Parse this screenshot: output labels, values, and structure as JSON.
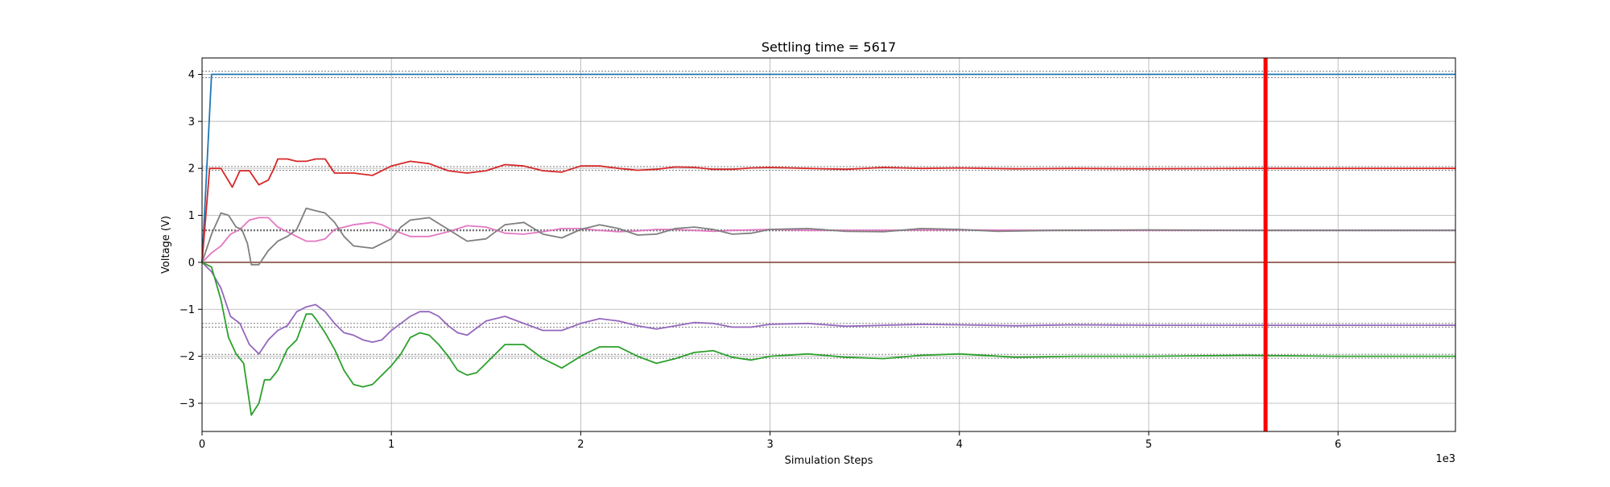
{
  "chart_data": {
    "type": "line",
    "title": "Settling time = 5617",
    "xlabel": "Simulation Steps",
    "ylabel": "Voltage (V)",
    "x_multiplier_label": "1e3",
    "xlim": [
      0,
      6620
    ],
    "ylim": [
      -3.6,
      4.35
    ],
    "grid": true,
    "x_ticks": [
      0,
      1000,
      2000,
      3000,
      4000,
      5000,
      6000
    ],
    "x_tick_labels": [
      "0",
      "1",
      "2",
      "3",
      "4",
      "5",
      "6"
    ],
    "y_ticks": [
      -3,
      -2,
      -1,
      0,
      1,
      2,
      3,
      4
    ],
    "y_tick_labels": [
      "−3",
      "−2",
      "−1",
      "0",
      "1",
      "2",
      "3",
      "4"
    ],
    "settling_line": {
      "x": 5617,
      "color": "#ff0000"
    },
    "reference_lines": [
      {
        "y": 4.07,
        "color": "#808080"
      },
      {
        "y": 3.93,
        "color": "#808080"
      },
      {
        "y": 2.04,
        "color": "#808080"
      },
      {
        "y": 1.96,
        "color": "#808080"
      },
      {
        "y": 0.69,
        "color": "#555555"
      },
      {
        "y": 0.67,
        "color": "#555555"
      },
      {
        "y": -1.3,
        "color": "#808080"
      },
      {
        "y": -1.38,
        "color": "#808080"
      },
      {
        "y": -1.96,
        "color": "#808080"
      },
      {
        "y": -2.04,
        "color": "#808080"
      }
    ],
    "series": [
      {
        "color": "#1f77b4",
        "x": [
          0,
          50,
          6620
        ],
        "y": [
          0,
          4.0,
          4.0
        ]
      },
      {
        "color": "#8c564b",
        "x": [
          0,
          6620
        ],
        "y": [
          0,
          0
        ]
      },
      {
        "color": "#d62728",
        "x": [
          0,
          40,
          100,
          160,
          200,
          250,
          300,
          350,
          380,
          400,
          450,
          500,
          550,
          600,
          650,
          700,
          800,
          900,
          1000,
          1100,
          1200,
          1300,
          1400,
          1500,
          1600,
          1700,
          1800,
          1900,
          2000,
          2100,
          2200,
          2300,
          2400,
          2500,
          2600,
          2700,
          2800,
          2900,
          3000,
          3200,
          3400,
          3600,
          3800,
          4000,
          4300,
          4600,
          5000,
          5500,
          6000,
          6620
        ],
        "y": [
          0,
          2.0,
          2.0,
          1.6,
          1.95,
          1.95,
          1.65,
          1.75,
          2.0,
          2.2,
          2.2,
          2.15,
          2.15,
          2.2,
          2.2,
          1.9,
          1.9,
          1.85,
          2.05,
          2.15,
          2.1,
          1.95,
          1.9,
          1.95,
          2.08,
          2.05,
          1.95,
          1.92,
          2.05,
          2.05,
          2.0,
          1.96,
          1.98,
          2.03,
          2.02,
          1.98,
          1.98,
          2.01,
          2.02,
          2.0,
          1.98,
          2.02,
          2.0,
          2.01,
          1.99,
          2.0,
          1.99,
          2.0,
          2.0,
          2.0
        ]
      },
      {
        "color": "#e377c2",
        "x": [
          0,
          50,
          100,
          150,
          200,
          250,
          300,
          350,
          400,
          500,
          550,
          600,
          650,
          700,
          800,
          900,
          950,
          1000,
          1100,
          1200,
          1300,
          1400,
          1500,
          1600,
          1700,
          1800,
          1900,
          2000,
          2100,
          2200,
          2300,
          2400,
          2500,
          2600,
          2700,
          2800,
          3000,
          3200,
          3500,
          4000,
          4500,
          5000,
          5500,
          6000,
          6620
        ],
        "y": [
          0,
          0.2,
          0.35,
          0.6,
          0.7,
          0.9,
          0.95,
          0.95,
          0.75,
          0.55,
          0.45,
          0.45,
          0.5,
          0.7,
          0.8,
          0.85,
          0.8,
          0.7,
          0.55,
          0.55,
          0.65,
          0.78,
          0.75,
          0.62,
          0.6,
          0.65,
          0.72,
          0.72,
          0.68,
          0.65,
          0.67,
          0.7,
          0.7,
          0.68,
          0.66,
          0.68,
          0.7,
          0.68,
          0.68,
          0.69,
          0.68,
          0.68,
          0.68,
          0.68,
          0.68
        ]
      },
      {
        "color": "#7f7f7f",
        "x": [
          0,
          50,
          100,
          140,
          180,
          210,
          240,
          260,
          300,
          350,
          400,
          450,
          500,
          550,
          600,
          650,
          700,
          750,
          800,
          900,
          1000,
          1050,
          1100,
          1200,
          1300,
          1400,
          1500,
          1600,
          1700,
          1800,
          1900,
          2000,
          2100,
          2200,
          2300,
          2400,
          2500,
          2600,
          2700,
          2800,
          2900,
          3000,
          3200,
          3400,
          3600,
          3800,
          4000,
          4200,
          4500,
          5000,
          5500,
          6000,
          6620
        ],
        "y": [
          0,
          0.6,
          1.05,
          1.0,
          0.75,
          0.7,
          0.4,
          -0.05,
          -0.05,
          0.25,
          0.45,
          0.55,
          0.7,
          1.15,
          1.1,
          1.05,
          0.85,
          0.55,
          0.35,
          0.3,
          0.5,
          0.75,
          0.9,
          0.95,
          0.7,
          0.45,
          0.5,
          0.8,
          0.85,
          0.6,
          0.52,
          0.7,
          0.8,
          0.72,
          0.58,
          0.6,
          0.72,
          0.75,
          0.7,
          0.6,
          0.62,
          0.7,
          0.72,
          0.66,
          0.65,
          0.72,
          0.7,
          0.66,
          0.68,
          0.69,
          0.68,
          0.68,
          0.68
        ]
      },
      {
        "color": "#9467bd",
        "x": [
          0,
          50,
          100,
          150,
          200,
          250,
          300,
          350,
          400,
          450,
          500,
          550,
          600,
          650,
          700,
          750,
          800,
          850,
          900,
          950,
          1000,
          1050,
          1100,
          1150,
          1200,
          1250,
          1300,
          1350,
          1400,
          1450,
          1500,
          1600,
          1700,
          1800,
          1900,
          2000,
          2100,
          2200,
          2300,
          2400,
          2500,
          2600,
          2700,
          2800,
          2900,
          3000,
          3200,
          3400,
          3600,
          3800,
          4000,
          4300,
          4600,
          5000,
          5500,
          6000,
          6620
        ],
        "y": [
          0,
          -0.2,
          -0.55,
          -1.15,
          -1.3,
          -1.75,
          -1.95,
          -1.65,
          -1.45,
          -1.35,
          -1.05,
          -0.95,
          -0.9,
          -1.05,
          -1.3,
          -1.5,
          -1.55,
          -1.65,
          -1.7,
          -1.65,
          -1.45,
          -1.3,
          -1.15,
          -1.05,
          -1.05,
          -1.15,
          -1.35,
          -1.5,
          -1.55,
          -1.4,
          -1.25,
          -1.15,
          -1.3,
          -1.45,
          -1.45,
          -1.3,
          -1.2,
          -1.25,
          -1.35,
          -1.42,
          -1.35,
          -1.28,
          -1.3,
          -1.38,
          -1.38,
          -1.32,
          -1.3,
          -1.36,
          -1.34,
          -1.32,
          -1.33,
          -1.35,
          -1.33,
          -1.34,
          -1.34,
          -1.34,
          -1.34
        ]
      },
      {
        "color": "#2ca02c",
        "x": [
          0,
          50,
          100,
          140,
          180,
          220,
          260,
          300,
          330,
          360,
          400,
          450,
          500,
          550,
          580,
          600,
          650,
          700,
          750,
          800,
          850,
          900,
          950,
          1000,
          1050,
          1100,
          1150,
          1200,
          1250,
          1300,
          1350,
          1400,
          1450,
          1500,
          1600,
          1700,
          1800,
          1900,
          2000,
          2100,
          2200,
          2300,
          2400,
          2500,
          2600,
          2700,
          2800,
          2900,
          3000,
          3200,
          3400,
          3600,
          3800,
          4000,
          4300,
          4600,
          5000,
          5500,
          6000,
          6620
        ],
        "y": [
          0,
          -0.1,
          -0.8,
          -1.6,
          -1.95,
          -2.15,
          -3.25,
          -3.0,
          -2.5,
          -2.5,
          -2.3,
          -1.85,
          -1.65,
          -1.1,
          -1.1,
          -1.2,
          -1.5,
          -1.85,
          -2.3,
          -2.6,
          -2.65,
          -2.6,
          -2.4,
          -2.2,
          -1.95,
          -1.6,
          -1.5,
          -1.55,
          -1.75,
          -2.0,
          -2.3,
          -2.4,
          -2.35,
          -2.15,
          -1.75,
          -1.75,
          -2.05,
          -2.25,
          -2.0,
          -1.8,
          -1.8,
          -2.0,
          -2.15,
          -2.05,
          -1.92,
          -1.88,
          -2.02,
          -2.08,
          -2.0,
          -1.95,
          -2.02,
          -2.05,
          -1.98,
          -1.95,
          -2.02,
          -2.0,
          -2.0,
          -1.98,
          -2.0,
          -2.0
        ]
      }
    ]
  }
}
